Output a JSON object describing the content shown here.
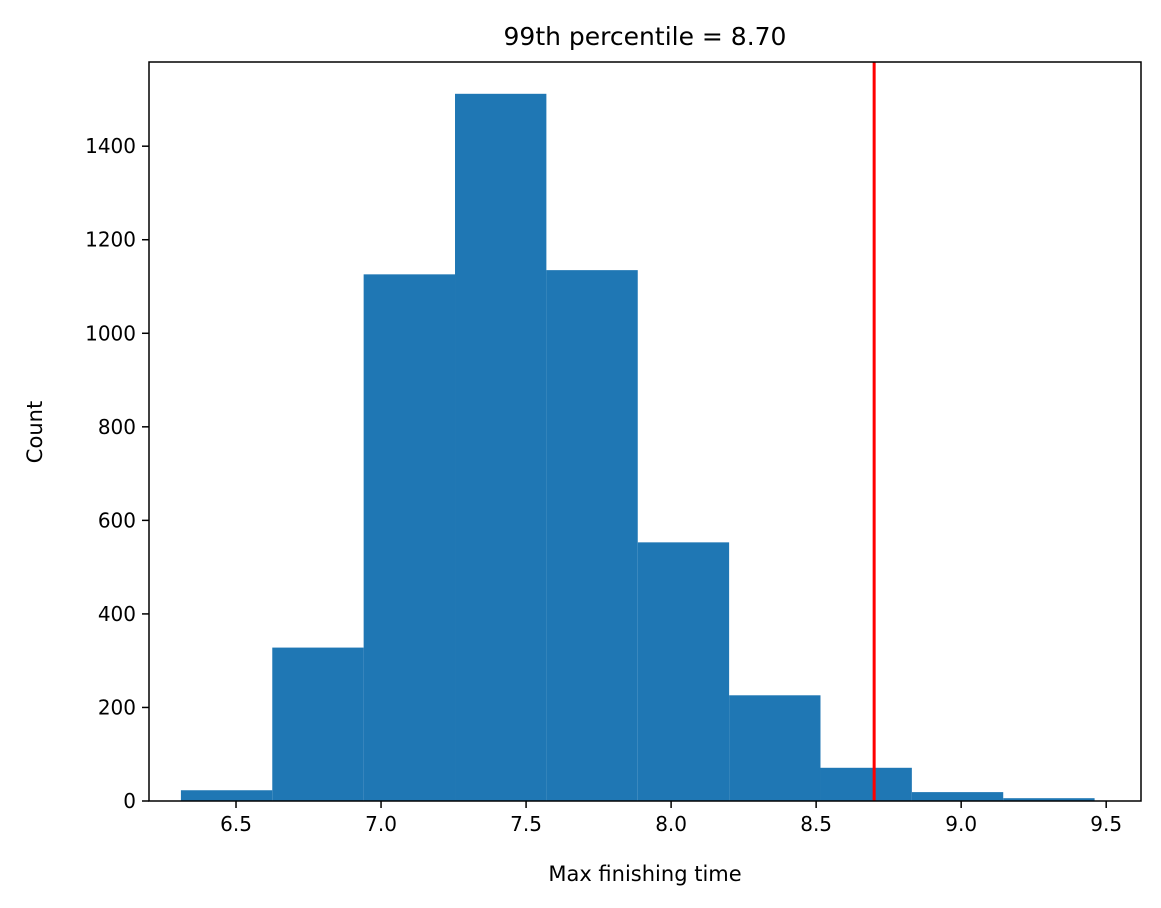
{
  "chart_data": {
    "type": "bar",
    "title": "99th percentile = 8.70",
    "xlabel": "Max finishing time",
    "ylabel": "Count",
    "xlim": [
      6.2,
      9.62
    ],
    "ylim": [
      0,
      1580
    ],
    "x_ticks": [
      6.5,
      7.0,
      7.5,
      8.0,
      8.5,
      9.0,
      9.5
    ],
    "x_tick_labels": [
      "6.5",
      "7.0",
      "7.5",
      "8.0",
      "8.5",
      "9.0",
      "9.5"
    ],
    "y_ticks": [
      0,
      200,
      400,
      600,
      800,
      1000,
      1200,
      1400
    ],
    "y_tick_labels": [
      "0",
      "200",
      "400",
      "600",
      "800",
      "1000",
      "1200",
      "1400"
    ],
    "bins": [
      {
        "x0": 6.31,
        "x1": 6.625,
        "count": 23
      },
      {
        "x0": 6.625,
        "x1": 6.94,
        "count": 328
      },
      {
        "x0": 6.94,
        "x1": 7.255,
        "count": 1126
      },
      {
        "x0": 7.255,
        "x1": 7.57,
        "count": 1512
      },
      {
        "x0": 7.57,
        "x1": 7.885,
        "count": 1135
      },
      {
        "x0": 7.885,
        "x1": 8.2,
        "count": 553
      },
      {
        "x0": 8.2,
        "x1": 8.515,
        "count": 226
      },
      {
        "x0": 8.515,
        "x1": 8.83,
        "count": 71
      },
      {
        "x0": 8.83,
        "x1": 9.145,
        "count": 19
      },
      {
        "x0": 9.145,
        "x1": 9.46,
        "count": 6
      }
    ],
    "reference_line": {
      "x": 8.7,
      "color": "#ff0000"
    },
    "bar_color": "#1f77b4",
    "grid": false,
    "legend": "none"
  }
}
